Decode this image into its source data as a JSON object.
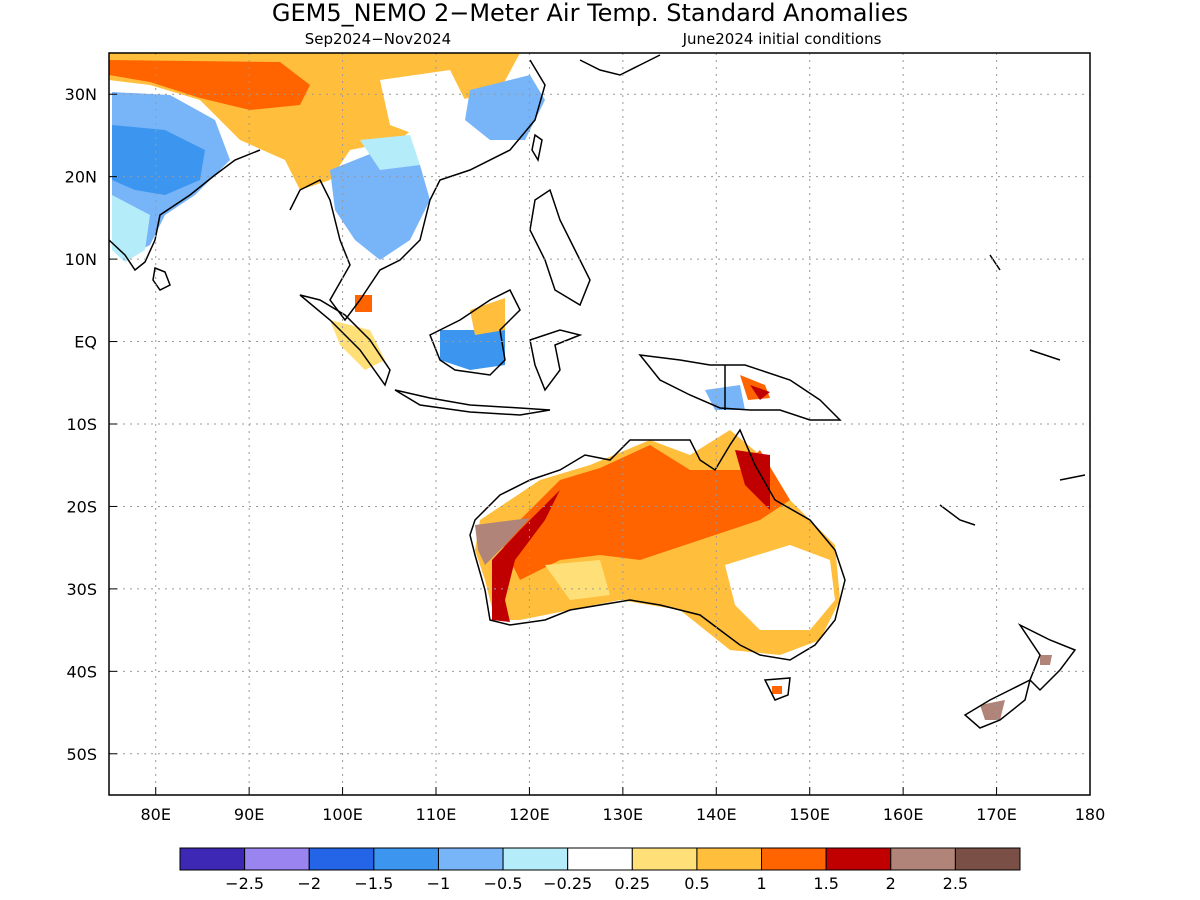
{
  "title": "GEM5_NEMO 2−Meter Air Temp. Standard Anomalies",
  "subtitle_left": "Sep2024−Nov2024",
  "subtitle_right": "June2024 initial conditions",
  "lat_labels": [
    "30N",
    "20N",
    "10N",
    "EQ",
    "10S",
    "20S",
    "30S",
    "40S",
    "50S"
  ],
  "lat_values": [
    30,
    20,
    10,
    0,
    -10,
    -20,
    -30,
    -40,
    -50
  ],
  "lon_labels": [
    "80E",
    "90E",
    "100E",
    "110E",
    "120E",
    "130E",
    "140E",
    "150E",
    "160E",
    "170E",
    "180"
  ],
  "lon_values": [
    80,
    90,
    100,
    110,
    120,
    130,
    140,
    150,
    160,
    170,
    180
  ],
  "extent": {
    "lon_min": 75,
    "lon_max": 180,
    "lat_min": -55,
    "lat_max": 35
  },
  "colorbar": {
    "colors": [
      "#3c28b4",
      "#9a84f0",
      "#2464e6",
      "#3c96f0",
      "#78b4f8",
      "#b4ecfa",
      "#ffffff",
      "#ffe078",
      "#ffbe3c",
      "#ff6400",
      "#c00000",
      "#b08478",
      "#7a5046"
    ],
    "labels": [
      "−2.5",
      "−2",
      "−1.5",
      "−1",
      "−0.5",
      "−0.25",
      "0.25",
      "0.5",
      "1",
      "1.5",
      "2",
      "2.5"
    ]
  }
}
